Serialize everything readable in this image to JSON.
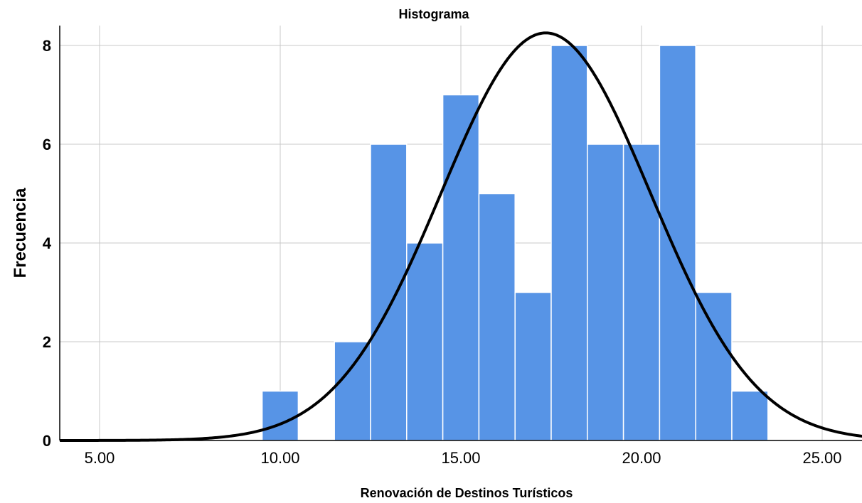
{
  "chart_data": {
    "type": "bar",
    "title": "Histograma",
    "xlabel": "Renovación de Destinos Turísticos",
    "ylabel": "Frecuencia",
    "xlim": [
      3.9,
      26.2
    ],
    "ylim": [
      0,
      8.4
    ],
    "bin_width": 1,
    "x_ticks": [
      5,
      10,
      15,
      20,
      25
    ],
    "x_tick_labels": [
      "5.00",
      "10.00",
      "15.00",
      "20.00",
      "25.00"
    ],
    "y_ticks": [
      0,
      2,
      4,
      6,
      8
    ],
    "y_tick_labels": [
      "0",
      "2",
      "4",
      "6",
      "8"
    ],
    "grid": true,
    "bars": [
      {
        "x": 10,
        "count": 1
      },
      {
        "x": 12,
        "count": 2
      },
      {
        "x": 13,
        "count": 6
      },
      {
        "x": 14,
        "count": 4
      },
      {
        "x": 15,
        "count": 7
      },
      {
        "x": 16,
        "count": 5
      },
      {
        "x": 17,
        "count": 3
      },
      {
        "x": 18,
        "count": 8
      },
      {
        "x": 19,
        "count": 6
      },
      {
        "x": 20,
        "count": 6
      },
      {
        "x": 21,
        "count": 8
      },
      {
        "x": 22,
        "count": 3
      },
      {
        "x": 23,
        "count": 1
      }
    ],
    "normal_curve": {
      "mean": 17.35,
      "std": 2.9,
      "n": 60
    },
    "colors": {
      "bar": "#5794e6",
      "curve": "#000000",
      "grid": "#c8c8c8"
    }
  }
}
